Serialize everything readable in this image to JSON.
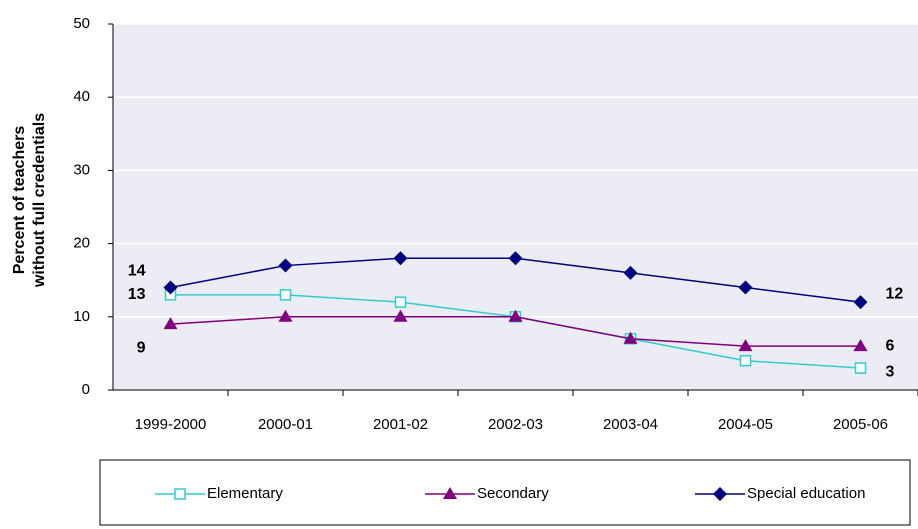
{
  "chart_data": {
    "type": "line",
    "ylabel": [
      "Percent of teachers",
      "without full credentials"
    ],
    "categories": [
      "1999-2000",
      "2000-01",
      "2001-02",
      "2002-03",
      "2003-04",
      "2004-05",
      "2005-06"
    ],
    "series": [
      {
        "name": "Elementary",
        "color": "#33cccc",
        "marker": "square",
        "values": [
          13,
          13,
          12,
          10,
          7,
          4,
          3
        ]
      },
      {
        "name": "Secondary",
        "color": "#800080",
        "marker": "triangle",
        "values": [
          9,
          10,
          10,
          10,
          7,
          6,
          6
        ]
      },
      {
        "name": "Special education",
        "color": "#000080",
        "marker": "diamond",
        "values": [
          14,
          17,
          18,
          18,
          16,
          14,
          12
        ]
      }
    ],
    "ylim": [
      0,
      50
    ],
    "yticks": [
      0,
      10,
      20,
      30,
      40,
      50
    ],
    "grid": true,
    "data_labels": "ends"
  }
}
